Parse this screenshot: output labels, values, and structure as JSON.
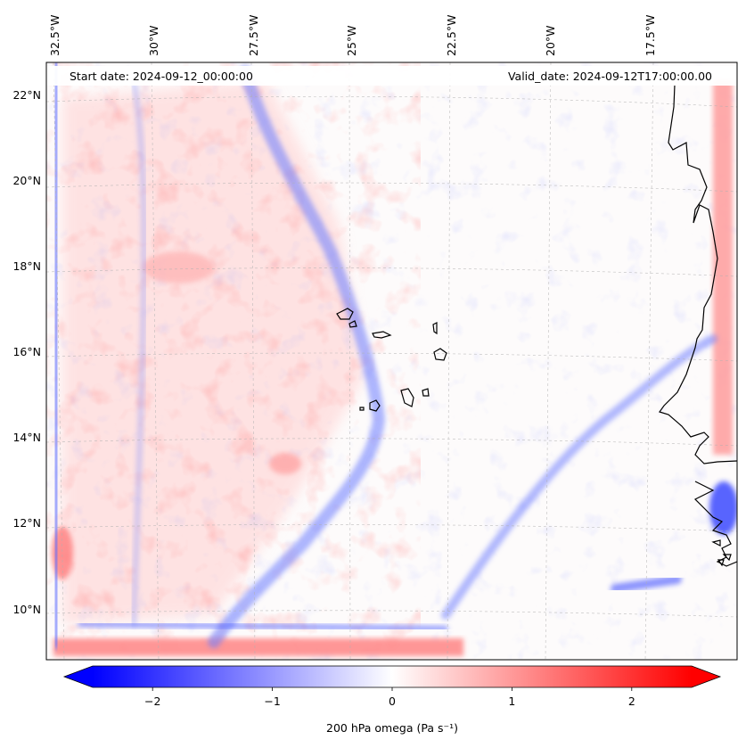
{
  "map": {
    "start_date_label": "Start date: 2024-09-12_00:00:00",
    "valid_date_label": "Valid_date: 2024-09-12T17:00:00.00",
    "lon_labels": [
      "32.5°W",
      "30°W",
      "27.5°W",
      "25°W",
      "22.5°W",
      "20°W",
      "17.5°W"
    ],
    "lat_labels": [
      "22°N",
      "20°N",
      "18°N",
      "16°N",
      "14°N",
      "12°N",
      "10°N"
    ],
    "lon_range": [
      -32.8,
      -15.5
    ],
    "lat_range": [
      8.8,
      22.7
    ],
    "grid": true,
    "coastline_color": "#000000",
    "field": "200 hPa omega"
  },
  "colorbar": {
    "label": "200 hPa omega (Pa s⁻¹)",
    "ticks": [
      "−2",
      "−1",
      "0",
      "1",
      "2"
    ],
    "tick_values": [
      -2,
      -1,
      0,
      1,
      2
    ],
    "range": [
      -2.5,
      2.5
    ],
    "extend": "both",
    "cmap": "bwr",
    "color_min": "#0000ff",
    "color_mid": "#ffffff",
    "color_max": "#ff0000"
  }
}
